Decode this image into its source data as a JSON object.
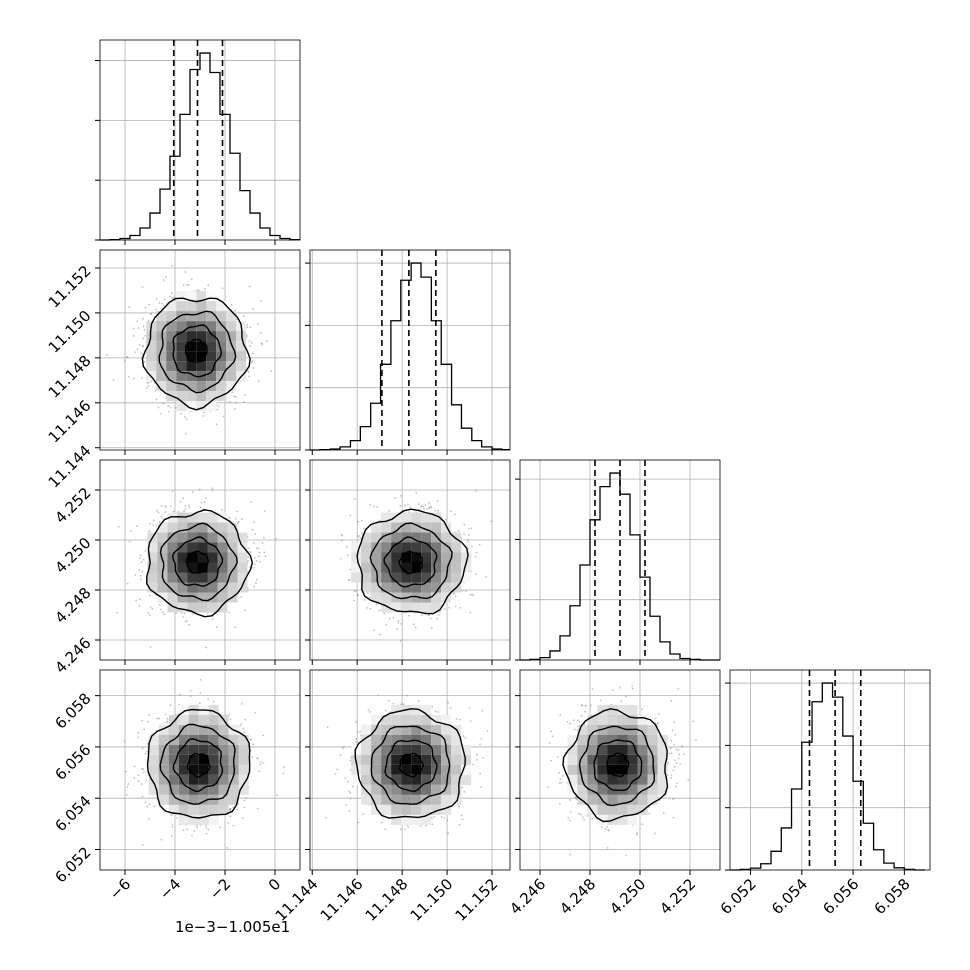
{
  "chart_data": {
    "type": "corner",
    "parameters": 4,
    "grid": true,
    "histogram_style": "step",
    "quantile_lines": "dashed",
    "density_colormap": "grayscale",
    "x_axes": [
      {
        "range": [
          -7.0,
          1.0
        ],
        "ticks": [
          -6,
          -4,
          -2,
          0
        ],
        "tick_labels": [
          "−6",
          "−4",
          "−2",
          "0"
        ],
        "offset_text": "1e−3−1.005e1"
      },
      {
        "range": [
          11.1439,
          11.1528
        ],
        "ticks": [
          11.144,
          11.146,
          11.148,
          11.15,
          11.152
        ],
        "tick_labels": [
          "11.144",
          "11.146",
          "11.148",
          "11.150",
          "11.152"
        ],
        "offset_text": ""
      },
      {
        "range": [
          4.2452,
          4.2532
        ],
        "ticks": [
          4.246,
          4.248,
          4.25,
          4.252
        ],
        "tick_labels": [
          "4.246",
          "4.248",
          "4.250",
          "4.252"
        ],
        "offset_text": ""
      },
      {
        "range": [
          6.0512,
          6.059
        ],
        "ticks": [
          6.052,
          6.054,
          6.056,
          6.058
        ],
        "tick_labels": [
          "6.052",
          "6.054",
          "6.056",
          "6.058"
        ],
        "offset_text": ""
      }
    ],
    "y_axes": [
      null,
      {
        "range": [
          11.1439,
          11.1528
        ],
        "ticks": [
          11.144,
          11.146,
          11.148,
          11.15,
          11.152
        ],
        "tick_labels": [
          "11.144",
          "11.146",
          "11.148",
          "11.150",
          "11.152"
        ]
      },
      {
        "range": [
          4.2452,
          4.2532
        ],
        "ticks": [
          4.246,
          4.248,
          4.25,
          4.252
        ],
        "tick_labels": [
          "4.246",
          "4.248",
          "4.250",
          "4.252"
        ]
      },
      {
        "range": [
          6.0512,
          6.059
        ],
        "ticks": [
          6.052,
          6.054,
          6.056,
          6.058
        ],
        "tick_labels": [
          "6.052",
          "6.054",
          "6.056",
          "6.058"
        ]
      }
    ],
    "marginals": [
      {
        "param": 0,
        "bin_edges": [
          -7.0,
          -6.6,
          -6.2,
          -5.8,
          -5.4,
          -5.0,
          -4.6,
          -4.2,
          -3.8,
          -3.4,
          -3.0,
          -2.6,
          -2.2,
          -1.8,
          -1.4,
          -1.0,
          -0.6,
          -0.2,
          0.2,
          0.6,
          1.0
        ],
        "counts": [
          0,
          1,
          5,
          15,
          40,
          90,
          170,
          280,
          420,
          570,
          625,
          560,
          420,
          290,
          165,
          90,
          40,
          15,
          5,
          1
        ],
        "quantiles": [
          -4.05,
          -3.1,
          -2.1
        ]
      },
      {
        "param": 1,
        "bin_edges": [
          11.1439,
          11.14434,
          11.1448,
          11.14524,
          11.1457,
          11.14614,
          11.1466,
          11.14704,
          11.1475,
          11.14794,
          11.1484,
          11.14884,
          11.1493,
          11.14974,
          11.1502,
          11.15064,
          11.1511,
          11.15154,
          11.152,
          11.15244,
          11.1528
        ],
        "counts": [
          0,
          1,
          3,
          10,
          30,
          75,
          150,
          275,
          415,
          545,
          600,
          555,
          415,
          275,
          145,
          70,
          30,
          10,
          3,
          1
        ],
        "quantiles": [
          11.1471,
          11.1483,
          11.1495
        ]
      },
      {
        "param": 2,
        "bin_edges": [
          4.2452,
          4.2456,
          4.246,
          4.2464,
          4.2468,
          4.2472,
          4.2476,
          4.248,
          4.2484,
          4.2488,
          4.2492,
          4.2496,
          4.25,
          4.2504,
          4.2508,
          4.2512,
          4.2516,
          4.252,
          4.2524,
          4.2528,
          4.2532
        ],
        "counts": [
          0,
          2,
          8,
          30,
          80,
          180,
          315,
          465,
          575,
          620,
          550,
          415,
          275,
          145,
          60,
          20,
          5,
          2,
          0,
          0
        ],
        "quantiles": [
          4.2482,
          4.2492,
          4.2502
        ]
      },
      {
        "param": 3,
        "bin_edges": [
          6.0512,
          6.0516,
          6.052,
          6.0524,
          6.0528,
          6.0532,
          6.0536,
          6.054,
          6.0544,
          6.0548,
          6.0552,
          6.0556,
          6.056,
          6.0564,
          6.0568,
          6.0572,
          6.0576,
          6.058,
          6.0584,
          6.0588
        ],
        "counts": [
          0,
          2,
          6,
          20,
          60,
          135,
          260,
          410,
          540,
          600,
          555,
          430,
          285,
          150,
          65,
          22,
          7,
          2,
          0
        ],
        "quantiles": [
          6.0543,
          6.0553,
          6.0563
        ]
      }
    ],
    "joints": [
      {
        "x_param": 0,
        "y_param": 1,
        "x_center": -3.15,
        "y_center": 11.1483,
        "x_sigma": 0.95,
        "y_sigma": 0.00112,
        "rho": 0.0
      },
      {
        "x_param": 0,
        "y_param": 2,
        "x_center": -3.1,
        "y_center": 4.2491,
        "x_sigma": 0.95,
        "y_sigma": 0.00095,
        "rho": 0.0
      },
      {
        "x_param": 1,
        "y_param": 2,
        "x_center": 11.1484,
        "y_center": 4.2491,
        "x_sigma": 0.00112,
        "y_sigma": 0.00095,
        "rho": 0.0
      },
      {
        "x_param": 0,
        "y_param": 3,
        "x_center": -3.05,
        "y_center": 6.0553,
        "x_sigma": 0.95,
        "y_sigma": 0.00098,
        "rho": 0.0
      },
      {
        "x_param": 1,
        "y_param": 3,
        "x_center": 11.1484,
        "y_center": 6.0553,
        "x_sigma": 0.00112,
        "y_sigma": 0.00098,
        "rho": 0.0
      },
      {
        "x_param": 2,
        "y_param": 3,
        "x_center": 4.2491,
        "y_center": 6.0553,
        "x_sigma": 0.00095,
        "y_sigma": 0.00098,
        "rho": 0.0
      }
    ]
  },
  "colors": {
    "line": "#000000",
    "grid": "#b0b0b0",
    "scatter_points": "#8c8c8c",
    "background": "#ffffff"
  }
}
